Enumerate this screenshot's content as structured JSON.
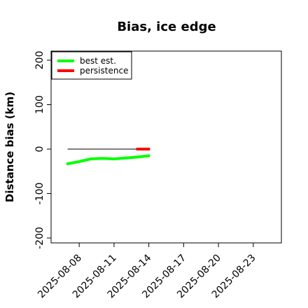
{
  "chart_data": {
    "type": "line",
    "title": "Bias, ice edge",
    "ylabel": "Distance bias (km)",
    "xlabel": "",
    "ylim": [
      -200,
      200
    ],
    "yticks": [
      -200,
      -100,
      0,
      100,
      200
    ],
    "xlim": [
      "2025-08-06",
      "2025-08-25"
    ],
    "xticks": [
      "2025-08-08",
      "2025-08-11",
      "2025-08-14",
      "2025-08-17",
      "2025-08-20",
      "2025-08-23"
    ],
    "grid": false,
    "legend_position": "top-left",
    "reference_line": {
      "y": 0,
      "x_start": "2025-08-07",
      "x_end": "2025-08-14",
      "color": "#333333"
    },
    "series": [
      {
        "name": "best est.",
        "color": "#00ff00",
        "x": [
          "2025-08-07",
          "2025-08-08",
          "2025-08-09",
          "2025-08-10",
          "2025-08-11",
          "2025-08-12",
          "2025-08-13",
          "2025-08-14"
        ],
        "y": [
          -33,
          -28,
          -22,
          -21,
          -22,
          -20,
          -18,
          -15
        ]
      },
      {
        "name": "persistence",
        "color": "#ff0000",
        "x": [
          "2025-08-13",
          "2025-08-14"
        ],
        "y": [
          0,
          0
        ]
      }
    ]
  }
}
